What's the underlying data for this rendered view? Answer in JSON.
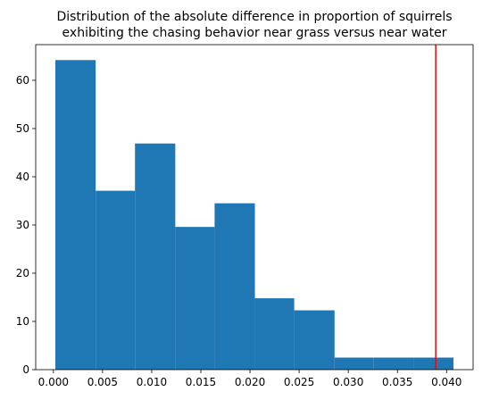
{
  "chart_data": {
    "type": "histogram",
    "title_lines": [
      "Distribution of the absolute difference in proportion of squirrels",
      "exhibiting the chasing behavior near grass versus near water"
    ],
    "xlabel": "",
    "ylabel": "",
    "bins": [
      {
        "x0": 0.0002,
        "x1": 0.0043,
        "value": 64.2
      },
      {
        "x0": 0.0043,
        "x1": 0.0083,
        "value": 37.1
      },
      {
        "x0": 0.0083,
        "x1": 0.0124,
        "value": 46.9
      },
      {
        "x0": 0.0124,
        "x1": 0.0164,
        "value": 29.6
      },
      {
        "x0": 0.0164,
        "x1": 0.0205,
        "value": 34.5
      },
      {
        "x0": 0.0205,
        "x1": 0.0245,
        "value": 14.8
      },
      {
        "x0": 0.0245,
        "x1": 0.0286,
        "value": 12.3
      },
      {
        "x0": 0.0286,
        "x1": 0.0326,
        "value": 2.5
      },
      {
        "x0": 0.0326,
        "x1": 0.0367,
        "value": 2.5
      },
      {
        "x0": 0.0367,
        "x1": 0.0407,
        "value": 2.5
      }
    ],
    "bar_color": "#1f77b4",
    "vline": {
      "x": 0.0389,
      "color": "#ff0000"
    },
    "xlim": [
      -0.0018,
      0.0427
    ],
    "ylim": [
      0,
      67.4
    ],
    "xticks": [
      "0.000",
      "0.005",
      "0.010",
      "0.015",
      "0.020",
      "0.025",
      "0.030",
      "0.035",
      "0.040"
    ],
    "xtick_values": [
      0,
      0.005,
      0.01,
      0.015,
      0.02,
      0.025,
      0.03,
      0.035,
      0.04
    ],
    "yticks": [
      "0",
      "10",
      "20",
      "30",
      "40",
      "50",
      "60"
    ],
    "ytick_values": [
      0,
      10,
      20,
      30,
      40,
      50,
      60
    ],
    "grid": false
  }
}
